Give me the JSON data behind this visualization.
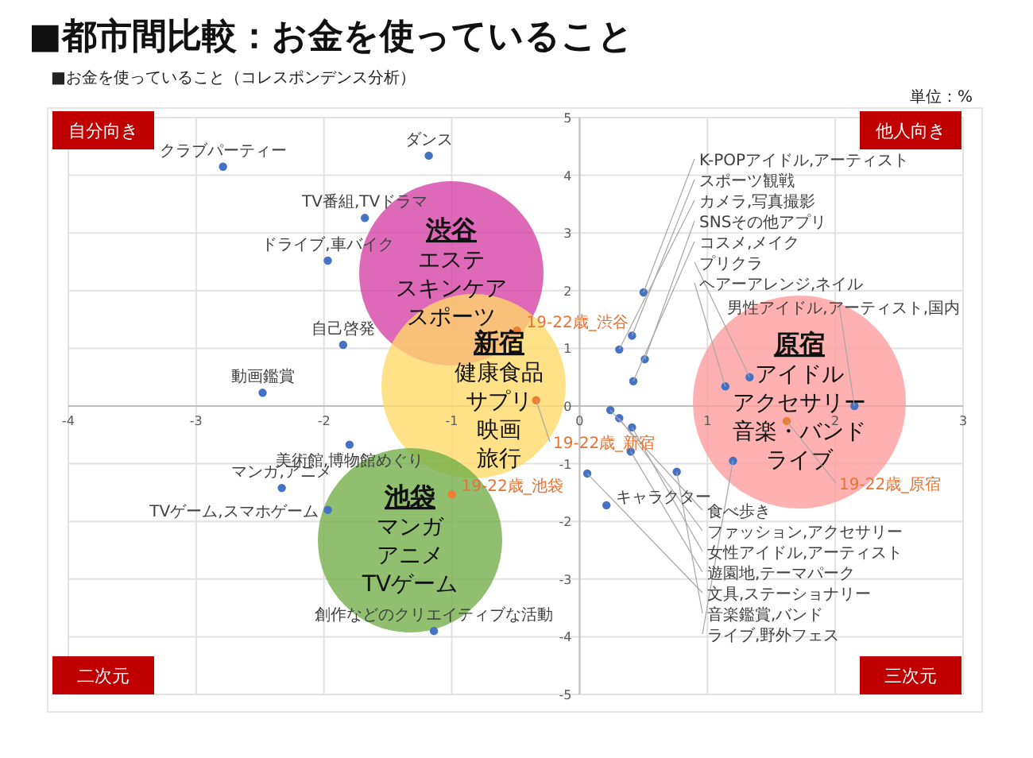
{
  "chart_data": {
    "type": "scatter",
    "title": "■都市間比較：お金を使っていること",
    "subtitle": "■お金を使っていること（コレスポンデンス分析）",
    "xlim": [
      -4,
      3
    ],
    "ylim": [
      -5,
      5
    ],
    "xticks": [
      -4,
      -3,
      -2,
      -1,
      0,
      1,
      2,
      3
    ],
    "yticks": [
      -5,
      -4,
      -3,
      -2,
      -1,
      0,
      1,
      2,
      3,
      4,
      5
    ],
    "grid": true,
    "marker": "circle",
    "series": [
      {
        "color": "#4472c4",
        "x": [
          -2.79,
          -1.18,
          -1.68,
          -1.97,
          -1.85,
          -2.48,
          -1.8,
          -2.33,
          -1.97,
          -1.14,
          0.5,
          0.41,
          0.31,
          0.51,
          0.42,
          1.33,
          1.14,
          2.15,
          0.24,
          0.31,
          0.41,
          0.4,
          0.06,
          0.76,
          1.2,
          0.21
        ],
        "values": [
          4.15,
          4.34,
          3.26,
          2.52,
          1.06,
          0.23,
          -0.67,
          -1.42,
          -1.8,
          -3.9,
          1.97,
          1.22,
          0.98,
          0.81,
          0.43,
          0.5,
          0.34,
          0.0,
          -0.07,
          -0.21,
          -0.37,
          -0.79,
          -1.17,
          -1.14,
          -0.95,
          -1.72
        ]
      },
      {
        "color": "#ed7d31",
        "x": [
          -0.49,
          -0.34,
          -1.0,
          1.62
        ],
        "values": [
          1.31,
          0.1,
          -1.53,
          -0.26
        ]
      }
    ],
    "annotations": [
      "単位：%",
      "自分向き",
      "他人向き",
      "二次元",
      "三次元",
      "渋谷",
      "エステ",
      "スキンケア",
      "スポーツ",
      "新宿",
      "健康食品",
      "サプリ",
      "映画",
      "旅行",
      "池袋",
      "マンガ",
      "アニメ",
      "TVゲーム",
      "原宿",
      "アイドル",
      "アクセサリー",
      "音楽・バンド",
      "ライブ",
      {
        "text": "クラブパーティー",
        "x": -2.79,
        "y": 4.15
      },
      {
        "text": "ダンス",
        "x": -1.18,
        "y": 4.34
      },
      {
        "text": "TV番組,TVドラマ",
        "x": -1.68,
        "y": 3.26
      },
      {
        "text": "ドライブ,車バイク",
        "x": -1.97,
        "y": 2.52
      },
      {
        "text": "自己啓発",
        "x": -1.85,
        "y": 1.06
      },
      {
        "text": "動画鑑賞",
        "x": -2.48,
        "y": 0.23
      },
      {
        "text": "美術館,博物館めぐり",
        "x": -1.8,
        "y": -0.67
      },
      {
        "text": "マンガ,アニメ",
        "x": -2.33,
        "y": -1.42
      },
      {
        "text": "TVゲーム,スマホゲーム",
        "x": -1.97,
        "y": -1.8
      },
      {
        "text": "創作などのクリエイティブな活動",
        "x": -1.14,
        "y": -3.9
      },
      {
        "text": "K-POPアイドル,アーティスト",
        "x": 0.5,
        "y": 1.97
      },
      {
        "text": "スポーツ観戦",
        "x": 0.41,
        "y": 1.22
      },
      {
        "text": "カメラ,写真撮影",
        "x": 0.31,
        "y": 0.98
      },
      {
        "text": "SNSその他アプリ",
        "x": 0.51,
        "y": 0.81
      },
      {
        "text": "コスメ,メイク",
        "x": 0.42,
        "y": 0.43
      },
      {
        "text": "プリクラ",
        "x": 1.33,
        "y": 0.5
      },
      {
        "text": "ヘアーアレンジ,ネイル",
        "x": 1.14,
        "y": 0.34
      },
      {
        "text": "男性アイドル,アーティスト,国内",
        "x": 2.15,
        "y": 0.0
      },
      {
        "text": "食べ歩き",
        "x": 0.24,
        "y": -0.07
      },
      {
        "text": "ファッション,アクセサリー",
        "x": 0.31,
        "y": -0.21
      },
      {
        "text": "女性アイドル,アーティスト",
        "x": 0.41,
        "y": -0.37
      },
      {
        "text": "遊園地,テーマパーク",
        "x": 0.4,
        "y": -0.79
      },
      {
        "text": "文具,ステーショナリー",
        "x": 0.06,
        "y": -1.17
      },
      {
        "text": "音楽鑑賞,バンド",
        "x": 0.76,
        "y": -1.14
      },
      {
        "text": "ライブ,野外フェス",
        "x": 1.2,
        "y": -0.95
      },
      {
        "text": "キャラクター",
        "x": 0.21,
        "y": -1.72
      },
      {
        "text": "19-22歳_渋谷",
        "x": -0.49,
        "y": 1.31
      },
      {
        "text": "19-22歳_新宿",
        "x": -0.34,
        "y": 0.1
      },
      {
        "text": "19-22歳_池袋",
        "x": -1.0,
        "y": -1.53
      },
      {
        "text": "19-22歳_原宿",
        "x": 1.62,
        "y": -0.26
      }
    ]
  }
}
